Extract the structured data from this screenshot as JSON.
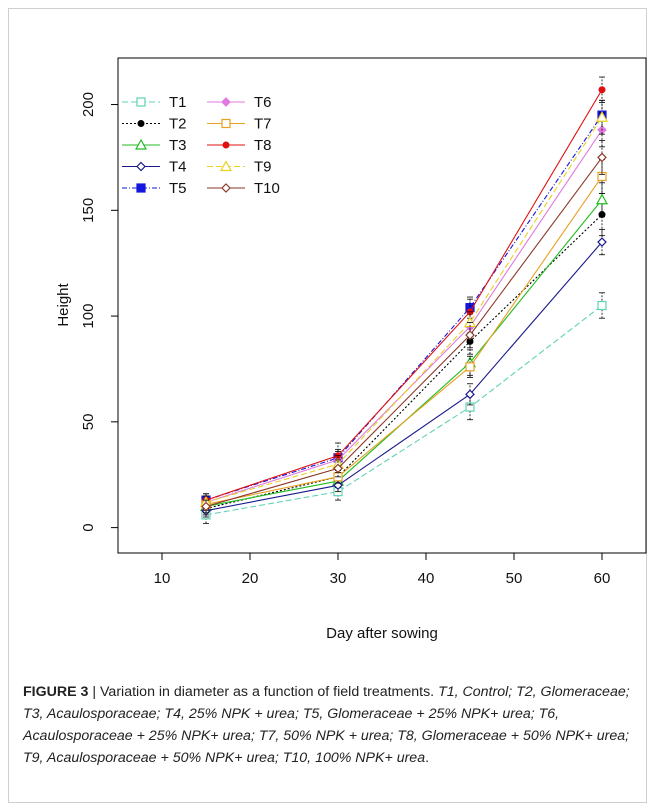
{
  "chart_data": {
    "type": "line",
    "title": "",
    "xlabel": "Day after sowing",
    "ylabel": "Height",
    "xlim": [
      5,
      65
    ],
    "ylim": [
      -12,
      222
    ],
    "x_ticks": [
      10,
      20,
      30,
      40,
      50,
      60
    ],
    "y_ticks": [
      0,
      50,
      100,
      150,
      200
    ],
    "legend_position": "top-left",
    "grid": false,
    "x": [
      15,
      30,
      45,
      60
    ],
    "series": [
      {
        "name": "T1",
        "color": "#5fd3b3",
        "dash": "6,3",
        "marker": "open-square",
        "values": [
          6,
          17,
          57,
          105
        ],
        "errors": [
          4,
          4,
          6,
          6
        ]
      },
      {
        "name": "T2",
        "color": "#000000",
        "dash": "2,2",
        "marker": "filled-circle",
        "values": [
          9,
          24,
          88,
          148
        ],
        "errors": [
          3,
          3,
          6,
          10
        ]
      },
      {
        "name": "T3",
        "color": "#22bb22",
        "dash": "",
        "marker": "open-triangle",
        "values": [
          10,
          22,
          78,
          155
        ],
        "errors": [
          3,
          3,
          6,
          8
        ]
      },
      {
        "name": "T4",
        "color": "#1a1a8c",
        "dash": "",
        "marker": "open-diamond",
        "values": [
          8,
          20,
          63,
          135
        ],
        "errors": [
          3,
          3,
          5,
          6
        ]
      },
      {
        "name": "T5",
        "color": "#1515e0",
        "dash": "5,2,1,2",
        "marker": "filled-square",
        "values": [
          13,
          33,
          104,
          195
        ],
        "errors": [
          3,
          4,
          5,
          7
        ]
      },
      {
        "name": "T6",
        "color": "#e07ae0",
        "dash": "",
        "marker": "filled-diamond",
        "values": [
          12,
          32,
          95,
          188
        ],
        "errors": [
          3,
          4,
          6,
          8
        ]
      },
      {
        "name": "T7",
        "color": "#e8a020",
        "dash": "",
        "marker": "open-square",
        "values": [
          11,
          24,
          76,
          166
        ],
        "errors": [
          3,
          3,
          5,
          8
        ]
      },
      {
        "name": "T8",
        "color": "#e01010",
        "dash": "",
        "marker": "filled-circle",
        "values": [
          13,
          34,
          102,
          207
        ],
        "errors": [
          3,
          6,
          6,
          6
        ]
      },
      {
        "name": "T9",
        "color": "#e8d020",
        "dash": "6,3",
        "marker": "open-triangle",
        "values": [
          12,
          30,
          97,
          194
        ],
        "errors": [
          3,
          4,
          5,
          8
        ]
      },
      {
        "name": "T10",
        "color": "#8b3a2a",
        "dash": "",
        "marker": "open-diamond",
        "values": [
          10,
          28,
          91,
          175
        ],
        "errors": [
          3,
          4,
          6,
          8
        ]
      }
    ]
  },
  "caption": {
    "label": "FIGURE 3",
    "separator": " | ",
    "text": "Variation in diameter as a function of field treatments. ",
    "legend_text": "T1, Control; T2, Glomeraceae; T3, Acaulosporaceae; T4, 25% NPK + urea; T5, Glomeraceae + 25% NPK+ urea; T6, Acaulosporaceae + 25% NPK+ urea; T7, 50% NPK + urea; T8, Glomeraceae + 50% NPK+ urea; T9, Acaulosporaceae + 50% NPK+ urea; T10, 100% NPK+ urea",
    "end": "."
  }
}
